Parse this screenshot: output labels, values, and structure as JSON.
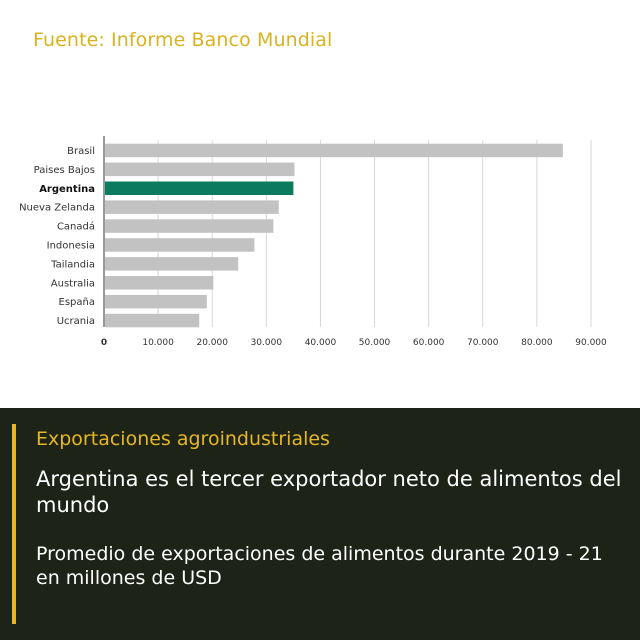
{
  "header": {
    "source": "Fuente: Informe Banco Mundial"
  },
  "panel": {
    "kicker": "Exportaciones agroindustriales",
    "headline": "Argentina es el tercer exportador neto de alimentos del mundo",
    "subtitle": "Promedio de exportaciones de alimentos durante 2019 - 21 en millones de USD"
  },
  "colors": {
    "bar_default": "#c2c2c2",
    "bar_highlight": "#0c7a5c",
    "source_text": "#d9b21f",
    "panel_background": "#1d2316",
    "panel_accent": "#e6b724"
  },
  "chart_data": {
    "type": "bar",
    "orientation": "horizontal",
    "categories": [
      "Brasil",
      "Paises Bajos",
      "Argentina",
      "Nueva Zelanda",
      "Canadá",
      "Indonesia",
      "Tailandia",
      "Australia",
      "España",
      "Ucrania"
    ],
    "values": [
      84800,
      35200,
      35000,
      32300,
      31300,
      27800,
      24800,
      20200,
      19000,
      17600
    ],
    "highlight": "Argentina",
    "xlim": [
      0,
      90000
    ],
    "ticks": [
      0,
      10000,
      20000,
      30000,
      40000,
      50000,
      60000,
      70000,
      80000,
      90000
    ],
    "tick_labels": [
      "0",
      "10.000",
      "20.000",
      "30.000",
      "40.000",
      "50.000",
      "60.000",
      "70.000",
      "80.000",
      "90.000"
    ],
    "grid": true
  }
}
